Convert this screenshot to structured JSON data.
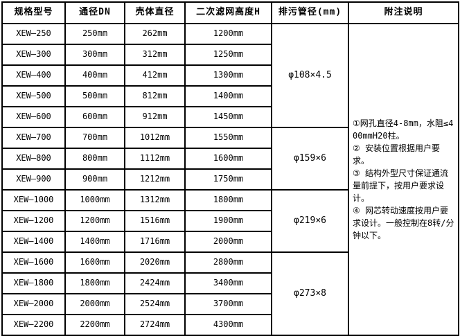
{
  "table": {
    "headers": [
      {
        "label": "规格型号"
      },
      {
        "label": "通径DN"
      },
      {
        "label": "壳体直径"
      },
      {
        "label": "二次滤网高度H"
      },
      {
        "label": "排污管径(mm)"
      },
      {
        "label": "附注说明"
      }
    ],
    "rows": [
      {
        "model": "XEW—250",
        "dn": "250mm",
        "shell": "262mm",
        "height": "1200mm"
      },
      {
        "model": "XEW—300",
        "dn": "300mm",
        "shell": "312mm",
        "height": "1250mm"
      },
      {
        "model": "XEW—400",
        "dn": "400mm",
        "shell": "412mm",
        "height": "1300mm"
      },
      {
        "model": "XEW—500",
        "dn": "500mm",
        "shell": "812mm",
        "height": "1400mm"
      },
      {
        "model": "XEW—600",
        "dn": "600mm",
        "shell": "912mm",
        "height": "1450mm"
      },
      {
        "model": "XEW—700",
        "dn": "700mm",
        "shell": "1012mm",
        "height": "1550mm"
      },
      {
        "model": "XEW—800",
        "dn": "800mm",
        "shell": "1112mm",
        "height": "1600mm"
      },
      {
        "model": "XEW—900",
        "dn": "900mm",
        "shell": "1212mm",
        "height": "1750mm"
      },
      {
        "model": "XEW—1000",
        "dn": "1000mm",
        "shell": "1312mm",
        "height": "1800mm"
      },
      {
        "model": "XEW—1200",
        "dn": "1200mm",
        "shell": "1516mm",
        "height": "1900mm"
      },
      {
        "model": "XEW—1400",
        "dn": "1400mm",
        "shell": "1716mm",
        "height": "2000mm"
      },
      {
        "model": "XEW—1600",
        "dn": "1600mm",
        "shell": "2020mm",
        "height": "2800mm"
      },
      {
        "model": "XEW—1800",
        "dn": "1800mm",
        "shell": "2424mm",
        "height": "3400mm"
      },
      {
        "model": "XEW—2000",
        "dn": "2000mm",
        "shell": "2524mm",
        "height": "3700mm"
      },
      {
        "model": "XEW—2200",
        "dn": "2200mm",
        "shell": "2724mm",
        "height": "4300mm"
      }
    ],
    "drain_groups": [
      {
        "value": "φ108×4.5",
        "span": 5
      },
      {
        "value": "φ159×6",
        "span": 3
      },
      {
        "value": "φ219×6",
        "span": 3
      },
      {
        "value": "φ273×8",
        "span": 4
      }
    ],
    "notes": [
      "①网孔直径4-8mm，水阻≤400mmH20柱。",
      "② 安装位置根据用户要求。",
      "③ 结构外型尺寸保证通流量前提下，按用户要求设计。",
      "④ 网芯转动速度按用户要求设计。一般控制在8转/分钟以下。"
    ]
  },
  "colors": {
    "border": "#000000",
    "text": "#000000",
    "background": "#ffffff"
  }
}
